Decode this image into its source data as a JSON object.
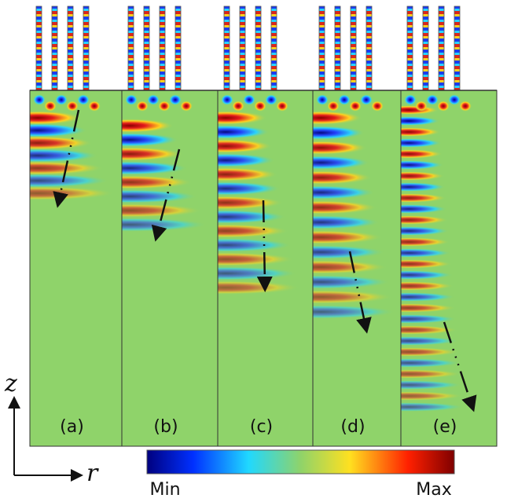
{
  "panels": [
    {
      "label": "(a)"
    },
    {
      "label": "(b)"
    },
    {
      "label": "(c)"
    },
    {
      "label": "(d)"
    },
    {
      "label": "(e)"
    }
  ],
  "axes": {
    "vertical": "z",
    "horizontal": "r"
  },
  "colorbar": {
    "min_label": "Min",
    "max_label": "Max"
  }
}
